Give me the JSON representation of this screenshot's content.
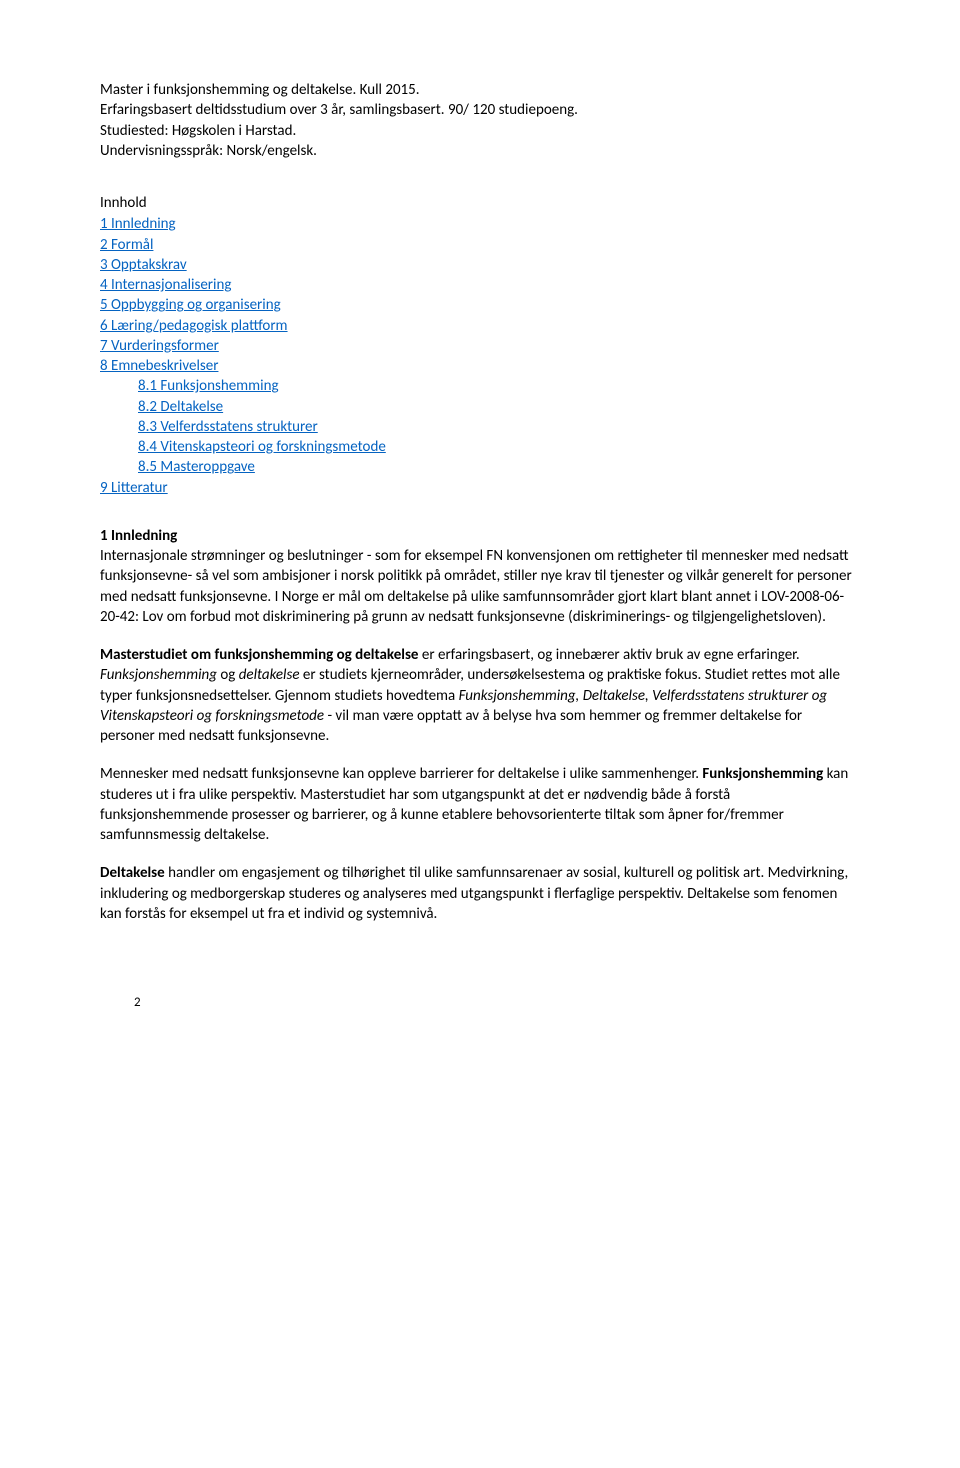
{
  "header": {
    "line1": "Master i funksjonshemming og deltakelse. Kull 2015.",
    "line2": "Erfaringsbasert deltidsstudium over 3 år, samlingsbasert. 90/ 120 studiepoeng.",
    "line3": "Studiested: Høgskolen i Harstad.",
    "line4": "Undervisningsspråk: Norsk/engelsk."
  },
  "toc": {
    "title": "Innhold",
    "items": [
      {
        "label": "1 Innledning",
        "indent": false
      },
      {
        "label": "2 Formål",
        "indent": false
      },
      {
        "label": "3 Opptakskrav",
        "indent": false
      },
      {
        "label": "4 Internasjonalisering",
        "indent": false
      },
      {
        "label": "5 Oppbygging og organisering",
        "indent": false
      },
      {
        "label": "6 Læring/pedagogisk plattform",
        "indent": false
      },
      {
        "label": "7 Vurderingsformer",
        "indent": false
      },
      {
        "label": "8 Emnebeskrivelser",
        "indent": false
      },
      {
        "label": "8.1 Funksjonshemming",
        "indent": true
      },
      {
        "label": "8.2 Deltakelse",
        "indent": true
      },
      {
        "label": "8.3 Velferdsstatens strukturer",
        "indent": true
      },
      {
        "label": "8.4 Vitenskapsteori og forskningsmetode",
        "indent": true
      },
      {
        "label": "8.5 Masteroppgave",
        "indent": true
      },
      {
        "label": "9 Litteratur",
        "indent": false
      }
    ]
  },
  "sections": {
    "s1": {
      "heading": "1 Innledning",
      "body": "Internasjonale strømninger og beslutninger - som for eksempel FN konvensjonen om rettigheter til mennesker med nedsatt funksjonsevne- så vel som ambisjoner i norsk politikk på området, stiller nye krav til tjenester og vilkår generelt for personer med nedsatt funksjonsevne. I Norge er mål om deltakelse på ulike samfunnsområder gjort klart blant annet i LOV-2008-06-20-42: Lov om forbud mot diskriminering på grunn av nedsatt funksjonsevne (diskriminerings- og tilgjengelighetsloven)."
    },
    "s2": {
      "run1_bold": "Masterstudiet om funksjonshemming og deltakelse",
      "run1_rest": " er erfaringsbasert, og innebærer aktiv bruk av egne erfaringer. ",
      "run2_italic": "Funksjonshemming",
      "run2_mid": " og ",
      "run3_italic": "deltakelse",
      "run3_rest": " er studiets kjerneområder, undersøkelsestema og praktiske fokus. Studiet rettes mot alle typer funksjonsnedsettelser. Gjennom studiets hovedtema ",
      "run4_italic": "Funksjonshemming, Deltakelse, Velferdsstatens strukturer og Vitenskapsteori og forskningsmetode",
      "run4_rest": " - vil man være opptatt av å belyse hva som hemmer og fremmer deltakelse for personer med nedsatt funksjonsevne."
    },
    "s3": {
      "body_pre": "Mennesker med nedsatt funksjonsevne kan oppleve barrierer for deltakelse i ulike sammenhenger. ",
      "bold": "Funksjonshemming",
      "body_post": " kan studeres ut i fra ulike perspektiv. Masterstudiet har som utgangspunkt at det er nødvendig både å forstå funksjonshemmende prosesser og barrierer, og å kunne etablere behovsorienterte tiltak som åpner for/fremmer samfunnsmessig deltakelse."
    },
    "s4": {
      "bold": "Deltakelse",
      "body": " handler om engasjement og tilhørighet til ulike samfunnsarenaer av sosial, kulturell og politisk art. Medvirkning, inkludering og medborgerskap studeres og analyseres med utgangspunkt i flerfaglige perspektiv. Deltakelse som fenomen kan forstås for eksempel ut fra et individ og systemnivå."
    }
  },
  "pageNumber": "2",
  "colors": {
    "link": "#0563c1",
    "text": "#000000",
    "background": "#ffffff"
  }
}
